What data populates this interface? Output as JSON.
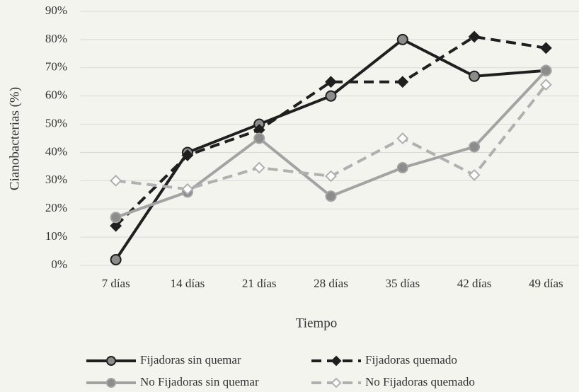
{
  "chart_data": {
    "type": "line",
    "categories": [
      "7 días",
      "14 días",
      "21 días",
      "28 días",
      "35 días",
      "42 días",
      "49 días"
    ],
    "series": [
      {
        "name": "Fijadoras sin quemar",
        "color": "#1f1f1f",
        "dash": false,
        "marker": "circle",
        "marker_fill": "#8c8c8c",
        "values": [
          2,
          40,
          50,
          60,
          80,
          67,
          69
        ]
      },
      {
        "name": "Fijadoras quemado",
        "color": "#1f1f1f",
        "dash": true,
        "marker": "diamond",
        "marker_fill": "#1f1f1f",
        "values": [
          14,
          39,
          48,
          65,
          65,
          81,
          77
        ]
      },
      {
        "name": "No Fijadoras sin quemar",
        "color": "#a3a3a3",
        "dash": false,
        "marker": "circle",
        "marker_fill": "#8c8c8c",
        "values": [
          17,
          26,
          45,
          24.5,
          34.6,
          42,
          69
        ]
      },
      {
        "name": "No Fijadoras quemado",
        "color": "#b0b0b0",
        "dash": true,
        "marker": "diamond",
        "marker_fill": "#ffffff",
        "values": [
          30,
          27,
          34.6,
          31.6,
          45,
          32,
          64
        ]
      }
    ],
    "ylabel": "Cianobacterias (%)",
    "xlabel": "Tiempo",
    "ylim": [
      0,
      90
    ],
    "yticks": [
      {
        "value": 0,
        "label": "0%"
      },
      {
        "value": 10,
        "label": "10%"
      },
      {
        "value": 20,
        "label": "20%"
      },
      {
        "value": 30,
        "label": "30%"
      },
      {
        "value": 40,
        "label": "40%"
      },
      {
        "value": 50,
        "label": "50%"
      },
      {
        "value": 60,
        "label": "60%"
      },
      {
        "value": 70,
        "label": "70%"
      },
      {
        "value": 80,
        "label": "80%"
      },
      {
        "value": 90,
        "label": "90%"
      }
    ],
    "grid": true,
    "legend": "bottom"
  }
}
